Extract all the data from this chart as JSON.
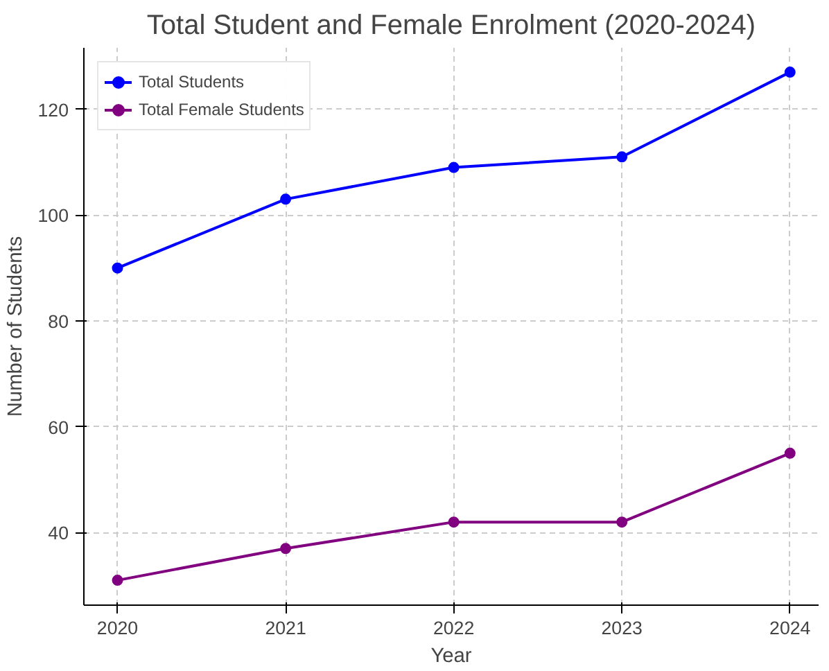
{
  "chart_data": {
    "type": "line",
    "title": "Total Student and Female Enrolment (2020-2024)",
    "xlabel": "Year",
    "ylabel": "Number of Students",
    "x": [
      2020,
      2021,
      2022,
      2023,
      2024
    ],
    "series": [
      {
        "name": "Total Students",
        "color": "#0000ff",
        "values": [
          90,
          103,
          109,
          111,
          127
        ]
      },
      {
        "name": "Total Female Students",
        "color": "#800080",
        "values": [
          31,
          37,
          42,
          42,
          55
        ]
      }
    ],
    "xlim": [
      2019.8,
      2024.17
    ],
    "xticks": [
      2020,
      2021,
      2022,
      2023,
      2024
    ],
    "ylim": [
      26.3,
      131.6
    ],
    "yticks": [
      40,
      60,
      80,
      100,
      120
    ],
    "grid": true,
    "legend": "top left",
    "marker": "circle",
    "line_style": "solid"
  }
}
